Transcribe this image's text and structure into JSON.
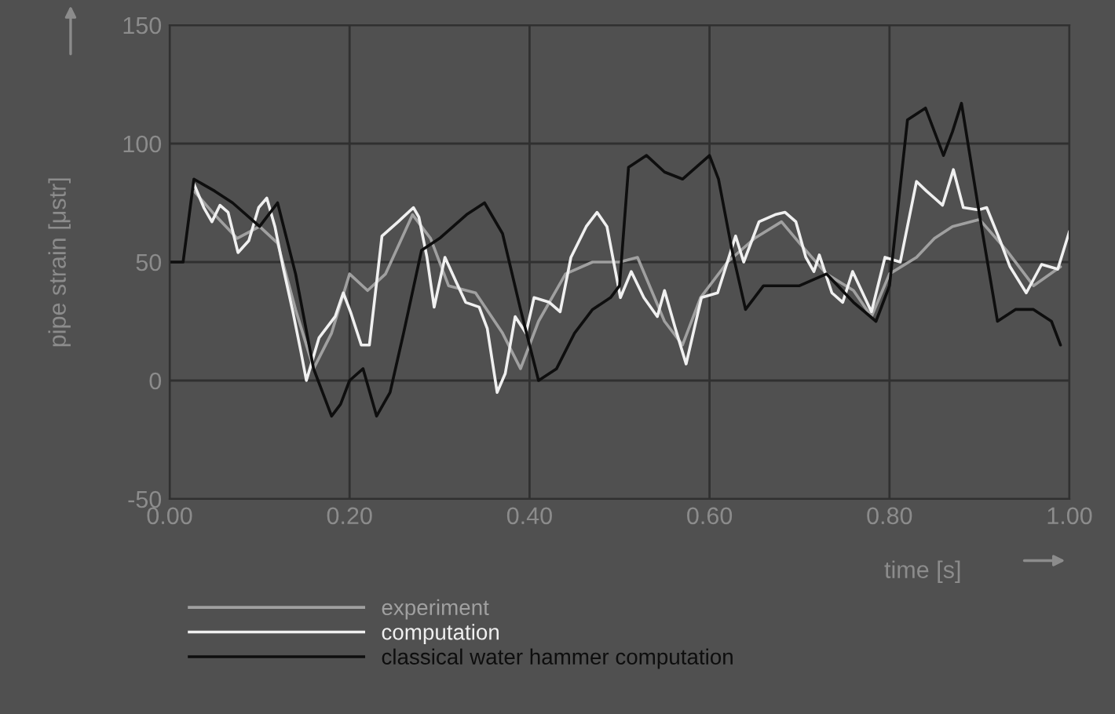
{
  "chart_data": {
    "type": "line",
    "xlabel": "time [s]",
    "ylabel": "pipe strain [μstr]",
    "xlim": [
      0,
      1.0
    ],
    "ylim": [
      -50,
      150
    ],
    "xticks": [
      {
        "value": 0,
        "label": "0.00"
      },
      {
        "value": 0.2,
        "label": "0.20"
      },
      {
        "value": 0.4,
        "label": "0.40"
      },
      {
        "value": 0.6,
        "label": "0.60"
      },
      {
        "value": 0.8,
        "label": "0.80"
      },
      {
        "value": 1.0,
        "label": "1.00"
      }
    ],
    "yticks": [
      -50,
      0,
      50,
      100,
      150
    ],
    "grid": true,
    "legend": "bottom left",
    "marker": "none",
    "line_style": "solid",
    "series": [
      {
        "name": "experiment",
        "color": "#a0a0a0",
        "x": [
          0.027,
          0.05,
          0.075,
          0.1,
          0.12,
          0.14,
          0.16,
          0.18,
          0.2,
          0.22,
          0.24,
          0.27,
          0.29,
          0.31,
          0.34,
          0.37,
          0.39,
          0.41,
          0.44,
          0.47,
          0.5,
          0.52,
          0.55,
          0.57,
          0.59,
          0.62,
          0.65,
          0.68,
          0.7,
          0.73,
          0.76,
          0.78,
          0.8,
          0.83,
          0.85,
          0.87,
          0.9,
          0.93,
          0.96,
          0.99
        ],
        "values": [
          80,
          70,
          60,
          65,
          58,
          30,
          5,
          20,
          45,
          38,
          45,
          70,
          60,
          40,
          37,
          20,
          5,
          25,
          45,
          50,
          50,
          52,
          25,
          15,
          35,
          50,
          60,
          67,
          58,
          45,
          38,
          27,
          45,
          52,
          60,
          65,
          68,
          55,
          40,
          48
        ]
      },
      {
        "name": "computation",
        "color": "#f0f0f0",
        "x": [
          0.027,
          0.038,
          0.047,
          0.056,
          0.065,
          0.076,
          0.088,
          0.099,
          0.108,
          0.117,
          0.126,
          0.137,
          0.146,
          0.152,
          0.166,
          0.184,
          0.193,
          0.201,
          0.213,
          0.222,
          0.236,
          0.254,
          0.271,
          0.277,
          0.286,
          0.294,
          0.306,
          0.318,
          0.329,
          0.344,
          0.353,
          0.364,
          0.373,
          0.384,
          0.396,
          0.405,
          0.422,
          0.434,
          0.446,
          0.463,
          0.475,
          0.486,
          0.501,
          0.513,
          0.527,
          0.542,
          0.55,
          0.562,
          0.574,
          0.591,
          0.609,
          0.629,
          0.638,
          0.655,
          0.673,
          0.684,
          0.696,
          0.707,
          0.716,
          0.722,
          0.736,
          0.748,
          0.759,
          0.78,
          0.795,
          0.812,
          0.83,
          0.841,
          0.859,
          0.871,
          0.882,
          0.899,
          0.908,
          0.923,
          0.934,
          0.952,
          0.969,
          0.987,
          1.0
        ],
        "values": [
          83,
          73,
          67,
          74,
          71,
          54,
          59,
          73,
          77,
          65,
          48,
          29,
          12,
          0,
          18,
          27,
          37,
          29,
          15,
          15,
          61,
          67,
          73,
          69,
          52,
          31,
          52,
          42,
          33,
          31,
          22,
          -5,
          3,
          27,
          20,
          35,
          33,
          29,
          52,
          65,
          71,
          65,
          35,
          46,
          35,
          27,
          38,
          22,
          7,
          35,
          37,
          61,
          50,
          67,
          70,
          71,
          67,
          52,
          46,
          53,
          37,
          33,
          46,
          29,
          52,
          50,
          84,
          80,
          74,
          89,
          73,
          72,
          73,
          59,
          48,
          37,
          49,
          47,
          63
        ]
      },
      {
        "name": "classical water hammer computation",
        "color": "#0e0e0e",
        "x": [
          0.0,
          0.015,
          0.027,
          0.05,
          0.07,
          0.1,
          0.12,
          0.14,
          0.16,
          0.18,
          0.19,
          0.2,
          0.215,
          0.23,
          0.245,
          0.26,
          0.28,
          0.3,
          0.33,
          0.35,
          0.37,
          0.39,
          0.41,
          0.43,
          0.45,
          0.47,
          0.49,
          0.5,
          0.51,
          0.53,
          0.55,
          0.57,
          0.6,
          0.61,
          0.625,
          0.64,
          0.66,
          0.7,
          0.73,
          0.76,
          0.785,
          0.8,
          0.82,
          0.84,
          0.86,
          0.87,
          0.88,
          0.9,
          0.92,
          0.94,
          0.96,
          0.98,
          0.99
        ],
        "values": [
          50,
          50,
          85,
          80,
          75,
          65,
          75,
          45,
          5,
          -15,
          -10,
          0,
          5,
          -15,
          -5,
          20,
          55,
          60,
          70,
          75,
          62,
          30,
          0,
          5,
          20,
          30,
          35,
          40,
          90,
          95,
          88,
          85,
          95,
          85,
          55,
          30,
          40,
          40,
          45,
          33,
          25,
          40,
          110,
          115,
          95,
          105,
          117,
          70,
          25,
          30,
          30,
          25,
          15
        ]
      }
    ]
  }
}
